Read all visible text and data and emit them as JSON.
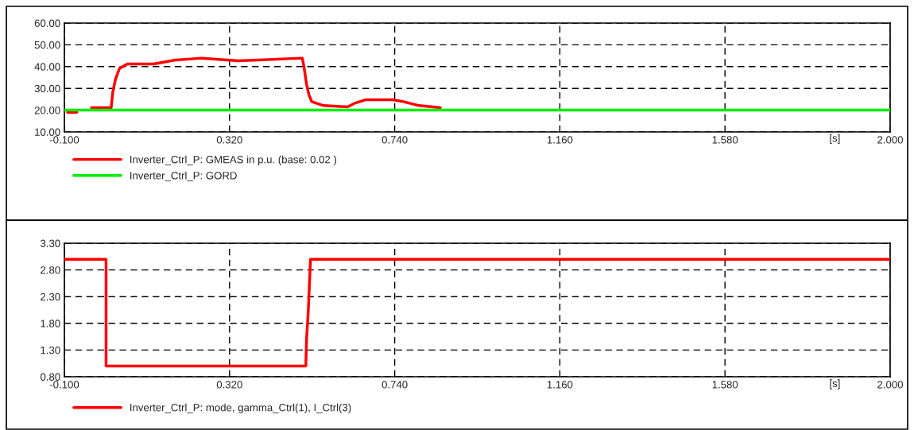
{
  "chart_data": [
    {
      "type": "line",
      "xlabel": "[s]",
      "xlim": [
        -0.1,
        2.0
      ],
      "xticks": [
        {
          "value": -0.1,
          "label": "-0.100"
        },
        {
          "value": 0.32,
          "label": "0.320"
        },
        {
          "value": 0.74,
          "label": "0.740"
        },
        {
          "value": 1.16,
          "label": "1.160"
        },
        {
          "value": 1.58,
          "label": "1.580"
        },
        {
          "value": 2.0,
          "label": "2.000"
        }
      ],
      "ylim": [
        10,
        60
      ],
      "yticks": [
        {
          "value": 10,
          "label": "10.00"
        },
        {
          "value": 20,
          "label": "20.00"
        },
        {
          "value": 30,
          "label": "30.00"
        },
        {
          "value": 40,
          "label": "40.00"
        },
        {
          "value": 50,
          "label": "50.00"
        },
        {
          "value": 60,
          "label": "60.00"
        }
      ],
      "grid": true,
      "legend": "bottom left",
      "line_style": "solid",
      "series": [
        {
          "name": "Inverter_Ctrl_P: GMEAS in p.u. (base: 0.02 )",
          "color": "#ff0000",
          "x": [
            -0.092,
            -0.068,
            -0.05,
            -0.031,
            0.019,
            0.023,
            0.03,
            0.04,
            0.06,
            0.127,
            0.155,
            0.178,
            0.249,
            0.343,
            0.505,
            0.509,
            0.516,
            0.522,
            0.529,
            0.559,
            0.62,
            0.64,
            0.667,
            0.735,
            0.762,
            0.802,
            0.856
          ],
          "values": [
            19.0,
            19.0,
            null,
            21.1,
            21.1,
            28.2,
            34.2,
            39.1,
            41.2,
            41.2,
            42.1,
            42.9,
            43.9,
            42.7,
            43.9,
            40.3,
            31.8,
            27.0,
            23.9,
            22.1,
            21.5,
            23.3,
            24.8,
            24.8,
            23.9,
            22.1,
            21.1
          ]
        },
        {
          "name": "Inverter_Ctrl_P: GORD",
          "color": "#00ee00",
          "x": [
            -0.1,
            2.0
          ],
          "values": [
            20.0,
            20.0
          ]
        }
      ]
    },
    {
      "type": "line",
      "xlabel": "[s]",
      "xlim": [
        -0.1,
        2.0
      ],
      "xticks": [
        {
          "value": -0.1,
          "label": "-0.100"
        },
        {
          "value": 0.32,
          "label": "0.320"
        },
        {
          "value": 0.74,
          "label": "0.740"
        },
        {
          "value": 1.16,
          "label": "1.160"
        },
        {
          "value": 1.58,
          "label": "1.580"
        },
        {
          "value": 2.0,
          "label": "2.000"
        }
      ],
      "ylim": [
        0.8,
        3.3
      ],
      "yticks": [
        {
          "value": 0.8,
          "label": "0.80"
        },
        {
          "value": 1.3,
          "label": "1.30"
        },
        {
          "value": 1.8,
          "label": "1.80"
        },
        {
          "value": 2.3,
          "label": "2.30"
        },
        {
          "value": 2.8,
          "label": "2.80"
        },
        {
          "value": 3.3,
          "label": "3.30"
        }
      ],
      "grid": true,
      "legend": "bottom left",
      "line_style": "solid",
      "series": [
        {
          "name": "Inverter_Ctrl_P: mode, gamma_Ctrl(1), I_Ctrl(3)",
          "color": "#ff0000",
          "x": [
            -0.1,
            0.006,
            0.006,
            0.514,
            0.516,
            0.52,
            0.526,
            2.0
          ],
          "values": [
            3.0,
            3.0,
            1.0,
            1.0,
            1.52,
            2.0,
            3.0,
            3.0
          ]
        }
      ]
    }
  ]
}
